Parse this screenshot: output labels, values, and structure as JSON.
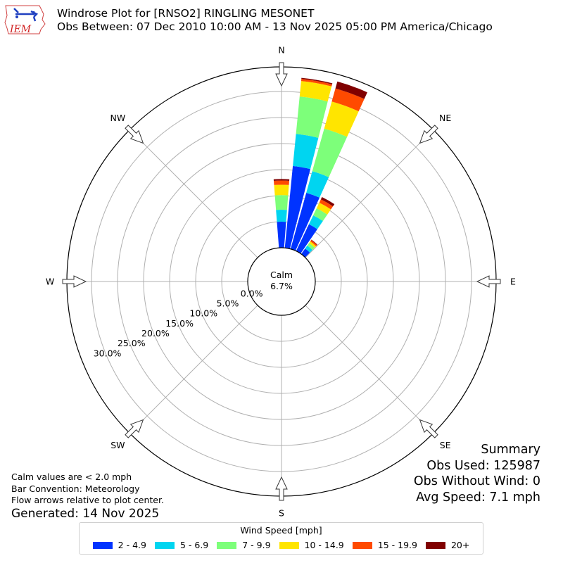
{
  "header": {
    "title_line1": "Windrose Plot for [RNSO2] RINGLING MESONET",
    "title_line2": "Obs Between: 07 Dec 2010 10:00 AM - 13 Nov 2025 05:00 PM America/Chicago",
    "logo_text": "IEM"
  },
  "notes": {
    "calm": "Calm values are < 2.0 mph",
    "convention": "Bar Convention: Meteorology",
    "flow": "Flow arrows relative to plot center.",
    "generated": "Generated: 14 Nov 2025"
  },
  "summary": {
    "title": "Summary",
    "obs_used": "Obs Used: 125987",
    "obs_without_wind": "Obs Without Wind: 0",
    "avg_speed": "Avg Speed: 7.1 mph"
  },
  "center": {
    "label": "Calm",
    "value": "6.7%"
  },
  "legend": {
    "title": "Wind Speed [mph]",
    "items": [
      {
        "label": "2 - 4.9",
        "color": "#0033ff"
      },
      {
        "label": "5 - 6.9",
        "color": "#00d5f0"
      },
      {
        "label": "7 - 9.9",
        "color": "#7dff7a"
      },
      {
        "label": "10 - 14.9",
        "color": "#ffe500"
      },
      {
        "label": "15 - 19.9",
        "color": "#ff4a00"
      },
      {
        "label": "20+",
        "color": "#800000"
      }
    ]
  },
  "compass": [
    "N",
    "NE",
    "E",
    "SE",
    "S",
    "SW",
    "W",
    "NW"
  ],
  "chart_data": {
    "type": "windrose",
    "title": "Windrose Plot for [RNSO2] RINGLING MESONET",
    "subtitle": "Obs Between: 07 Dec 2010 10:00 AM - 13 Nov 2025 05:00 PM America/Chicago",
    "radial_unit": "%",
    "radial_ticks": [
      "0.0%",
      "5.0%",
      "10.0%",
      "15.0%",
      "20.0%",
      "25.0%",
      "30.0%"
    ],
    "rmax": 34.7,
    "calm_percent": 6.7,
    "bar_width_deg": 10,
    "speed_bins": [
      "2 - 4.9",
      "5 - 6.9",
      "7 - 9.9",
      "10 - 14.9",
      "15 - 19.9",
      "20+"
    ],
    "colors": [
      "#0033ff",
      "#00d5f0",
      "#7dff7a",
      "#ffe500",
      "#ff4a00",
      "#800000"
    ],
    "directions": [
      {
        "deg": 0,
        "cumulative": [
          5.0,
          7.3,
          10.1,
          12.1,
          12.9,
          13.2
        ]
      },
      {
        "deg": 10,
        "cumulative": [
          15.8,
          22.0,
          29.2,
          32.2,
          32.6,
          32.8
        ]
      },
      {
        "deg": 20,
        "cumulative": [
          11.2,
          15.5,
          24.0,
          29.4,
          32.0,
          33.4
        ]
      },
      {
        "deg": 30,
        "cumulative": [
          5.7,
          7.6,
          9.1,
          10.3,
          11.0,
          11.5
        ]
      },
      {
        "deg": 40,
        "cumulative": [
          1.3,
          2.0,
          2.6,
          3.0,
          3.3,
          3.4
        ]
      }
    ]
  }
}
